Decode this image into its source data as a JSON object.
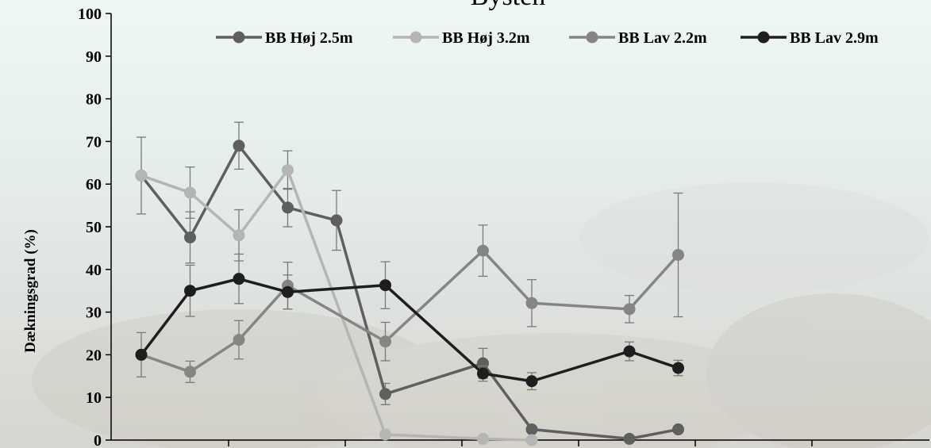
{
  "chart_data": {
    "type": "line",
    "title": "Bysten",
    "xlabel": "",
    "ylabel": "Dækningsgrad (%)",
    "ylim": [
      0,
      100
    ],
    "yticks": [
      0,
      10,
      20,
      30,
      40,
      50,
      60,
      70,
      80,
      90,
      100
    ],
    "x_positions": [
      0,
      1,
      2,
      3,
      4,
      5,
      6,
      7,
      8,
      9,
      10,
      11,
      12,
      13
    ],
    "grid": false,
    "legend_position": "top",
    "series": [
      {
        "name": "BB Høj 2.5m",
        "color": "#5f5f5f",
        "points": [
          {
            "x": 0,
            "y": 62,
            "err": 9
          },
          {
            "x": 1,
            "y": 47.5,
            "err": 6
          },
          {
            "x": 2,
            "y": 69,
            "err": 5.5
          },
          {
            "x": 3,
            "y": 54.5,
            "err": 4.5
          },
          {
            "x": 4,
            "y": 51.5,
            "err": 7
          },
          {
            "x": 5,
            "y": 10.8,
            "err": 2.5
          },
          {
            "x": 7,
            "y": 18,
            "err": 3.5
          },
          {
            "x": 8,
            "y": 2.5,
            "err": 0
          },
          {
            "x": 10,
            "y": 0.3,
            "err": 0
          },
          {
            "x": 11,
            "y": 2.5,
            "err": 0
          }
        ]
      },
      {
        "name": "BB Høj 3.2m",
        "color": "#b5b5b5",
        "points": [
          {
            "x": 0,
            "y": 62,
            "err": 0
          },
          {
            "x": 1,
            "y": 58,
            "err": 6
          },
          {
            "x": 2,
            "y": 48,
            "err": 6
          },
          {
            "x": 3,
            "y": 63.3,
            "err": 4.5
          },
          {
            "x": 5,
            "y": 1.3,
            "err": 0
          },
          {
            "x": 7,
            "y": 0.3,
            "err": 0
          },
          {
            "x": 8,
            "y": 0,
            "err": 0
          }
        ]
      },
      {
        "name": "BB Lav 2.2m",
        "color": "#858585",
        "points": [
          {
            "x": 0,
            "y": 20,
            "err": 0
          },
          {
            "x": 1,
            "y": 16,
            "err": 2.5
          },
          {
            "x": 2,
            "y": 23.5,
            "err": 4.5
          },
          {
            "x": 3,
            "y": 36.2,
            "err": 5.5
          },
          {
            "x": 5,
            "y": 23.1,
            "err": 4.5
          },
          {
            "x": 7,
            "y": 44.4,
            "err": 6
          },
          {
            "x": 8,
            "y": 32.1,
            "err": 5.5
          },
          {
            "x": 10,
            "y": 30.7,
            "err": 3.2
          },
          {
            "x": 11,
            "y": 43.4,
            "err": 14.5
          }
        ]
      },
      {
        "name": "BB Lav 2.9m",
        "color": "#1e1e1e",
        "points": [
          {
            "x": 0,
            "y": 20,
            "err": 5.2
          },
          {
            "x": 1,
            "y": 35,
            "err": 6
          },
          {
            "x": 2,
            "y": 37.8,
            "err": 5.8
          },
          {
            "x": 3,
            "y": 34.7,
            "err": 4
          },
          {
            "x": 5,
            "y": 36.3,
            "err": 5.5
          },
          {
            "x": 7,
            "y": 15.6,
            "err": 1.8
          },
          {
            "x": 8,
            "y": 13.8,
            "err": 2
          },
          {
            "x": 10,
            "y": 20.8,
            "err": 2.2
          },
          {
            "x": 11,
            "y": 16.9,
            "err": 1.8
          }
        ]
      }
    ]
  }
}
